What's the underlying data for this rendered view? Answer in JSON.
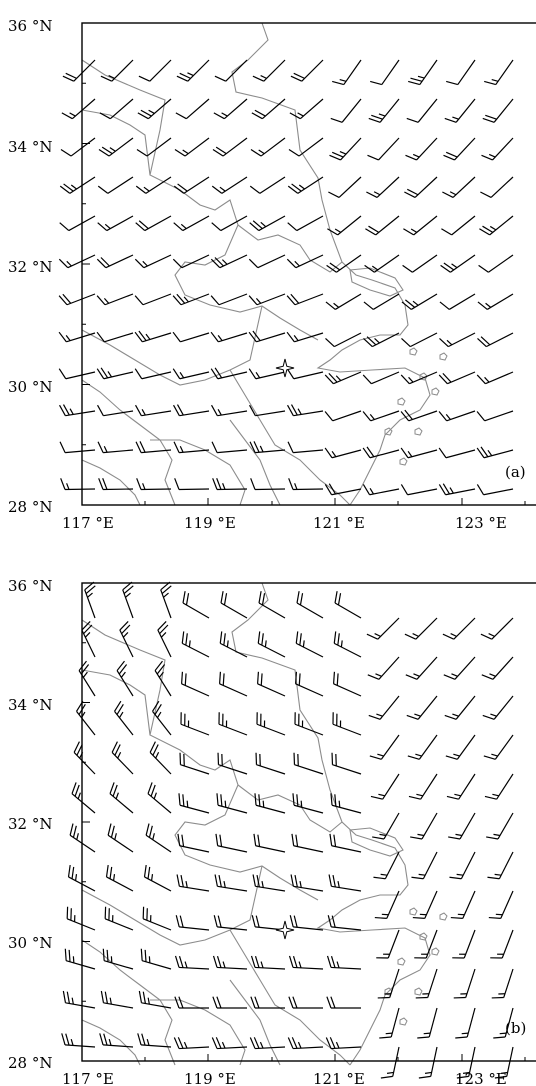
{
  "panels": [
    {
      "label": "(a)",
      "lat_labels": [
        "36 °N",
        "34 °N",
        "32 °N",
        "30 °N",
        "28 °N"
      ],
      "lon_labels": [
        "117 °E",
        "119 °E",
        "121 °E",
        "123 °E"
      ],
      "wind_description": "southwesterly to westerly flow",
      "marker": "star"
    },
    {
      "label": "(b)",
      "lat_labels": [
        "36 °N",
        "34 °N",
        "32 °N",
        "30 °N",
        "28 °N"
      ],
      "lon_labels": [
        "117 °E",
        "119 °E",
        "121 °E",
        "123 °E"
      ],
      "wind_description": "northerly to northwesterly flow in west, southwesterly in east",
      "marker": "star"
    }
  ],
  "colors": {
    "barb": "#000000",
    "coastline": "#8c8c8c",
    "frame": "#000000"
  }
}
